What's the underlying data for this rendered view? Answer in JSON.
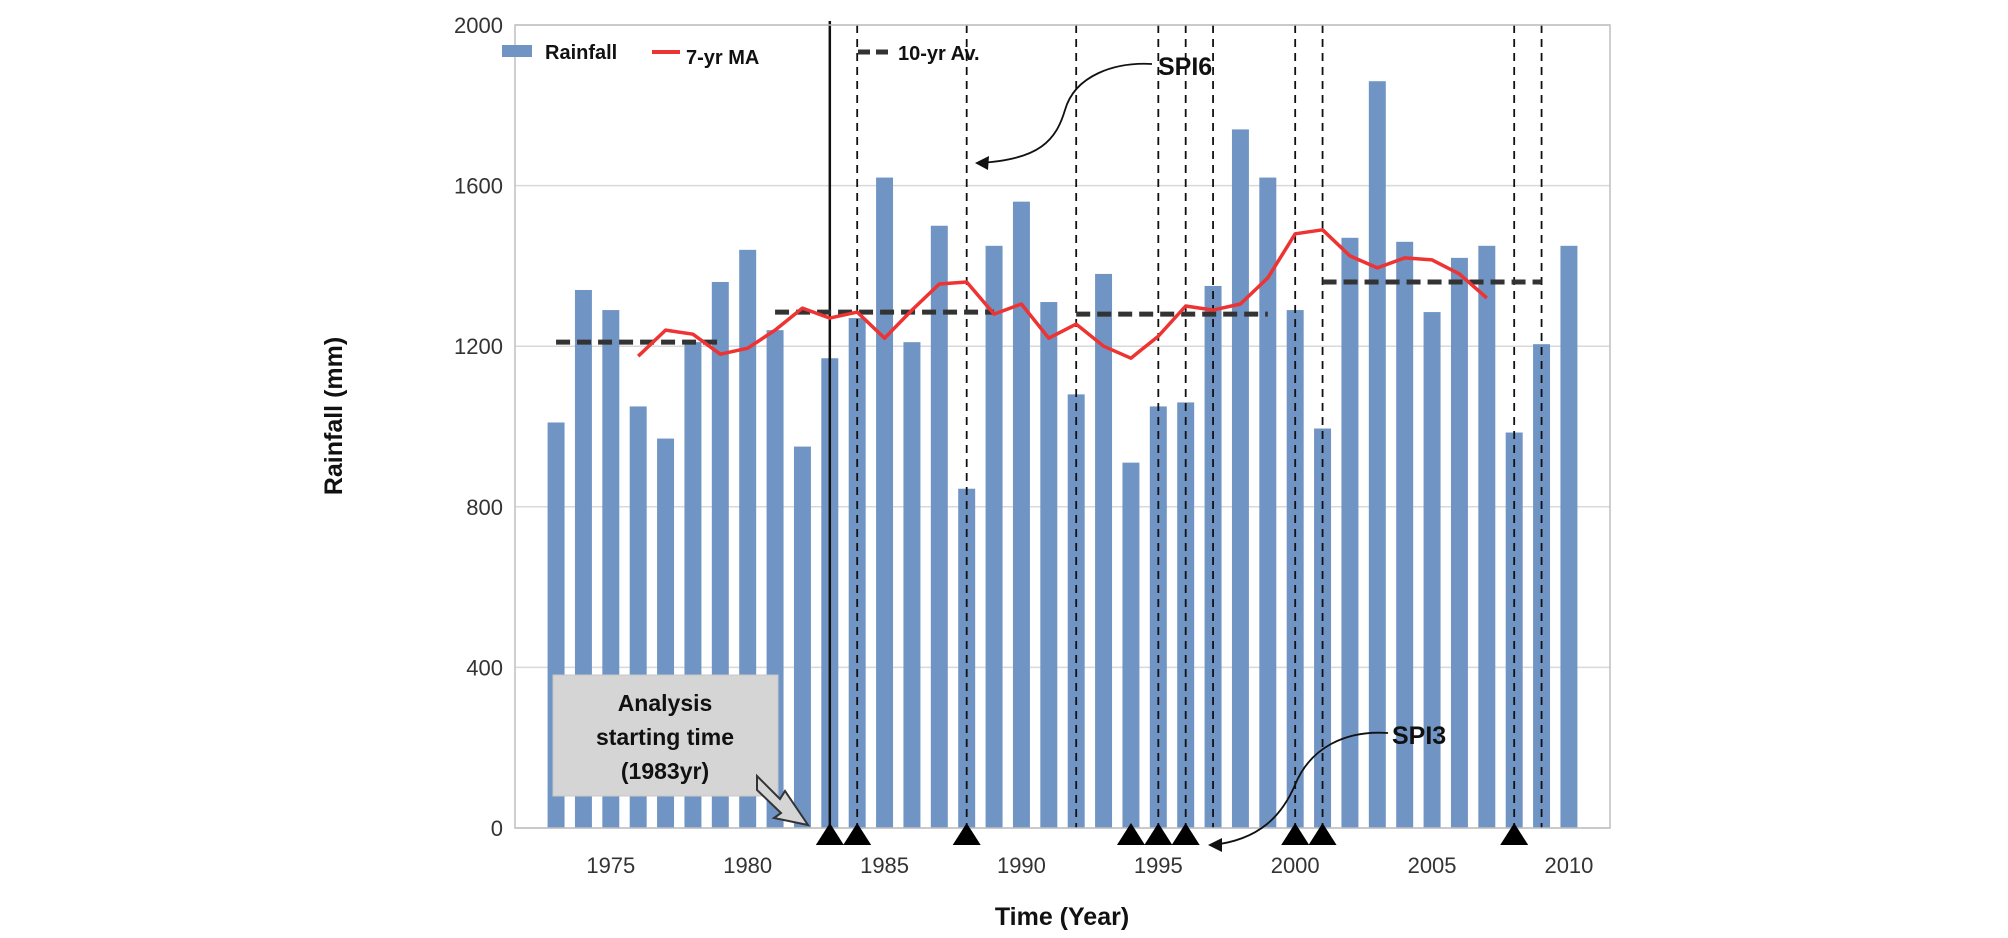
{
  "chart_data": {
    "type": "bar",
    "x_label": "Time (Year)",
    "y_label": "Rainfall (mm)",
    "xlim": [
      1971.5,
      2011.5
    ],
    "ylim": [
      0,
      2000
    ],
    "y_ticks": [
      0,
      400,
      800,
      1200,
      1600,
      2000
    ],
    "x_ticks": [
      1975,
      1980,
      1985,
      1990,
      1995,
      2000,
      2005,
      2010
    ],
    "grid": "horizontal",
    "legend": {
      "placement": "top-left",
      "items": [
        {
          "label": "Rainfall",
          "type": "bar",
          "color": "#7094c4"
        },
        {
          "label": "7-yr MA",
          "type": "line",
          "color": "#ee3333"
        },
        {
          "label": "10-yr Av.",
          "type": "dashed-line",
          "color": "#333333"
        }
      ]
    },
    "series": [
      {
        "name": "Rainfall",
        "type": "bar",
        "color": "#7094c4",
        "x": [
          1973,
          1974,
          1975,
          1976,
          1977,
          1978,
          1979,
          1980,
          1981,
          1982,
          1983,
          1984,
          1985,
          1986,
          1987,
          1988,
          1989,
          1990,
          1991,
          1992,
          1993,
          1994,
          1995,
          1996,
          1997,
          1998,
          1999,
          2000,
          2001,
          2002,
          2003,
          2004,
          2005,
          2006,
          2007,
          2008,
          2009,
          2010
        ],
        "values": [
          1010,
          1340,
          1290,
          1050,
          970,
          1210,
          1360,
          1440,
          1240,
          950,
          1170,
          1270,
          1620,
          1210,
          1500,
          845,
          1450,
          1560,
          1310,
          1080,
          1380,
          910,
          1050,
          1060,
          1350,
          1740,
          1620,
          1290,
          995,
          1470,
          1860,
          1460,
          1285,
          1420,
          1450,
          985,
          1205,
          1450
        ]
      },
      {
        "name": "7-yr MA",
        "type": "line",
        "color": "#ee3333",
        "x": [
          1976,
          1977,
          1978,
          1979,
          1980,
          1981,
          1982,
          1983,
          1984,
          1985,
          1986,
          1987,
          1988,
          1989,
          1990,
          1991,
          1992,
          1993,
          1994,
          1995,
          1996,
          1997,
          1998,
          1999,
          2000,
          2001,
          2002,
          2003,
          2004,
          2005,
          2006,
          2007
        ],
        "values": [
          1175,
          1240,
          1230,
          1180,
          1195,
          1240,
          1295,
          1270,
          1285,
          1220,
          1290,
          1355,
          1360,
          1280,
          1305,
          1220,
          1255,
          1200,
          1170,
          1225,
          1300,
          1290,
          1305,
          1370,
          1480,
          1490,
          1425,
          1395,
          1420,
          1415,
          1380,
          1320
        ]
      },
      {
        "name": "10-yr Av.",
        "type": "step",
        "color": "#333333",
        "segments": [
          {
            "x_start": 1973,
            "x_end": 1979,
            "value": 1210
          },
          {
            "x_start": 1981,
            "x_end": 1989,
            "value": 1285
          },
          {
            "x_start": 1992,
            "x_end": 1999,
            "value": 1280
          },
          {
            "x_start": 2001,
            "x_end": 2009,
            "value": 1360
          }
        ]
      }
    ],
    "vertical_lines": {
      "solid": [
        1983
      ],
      "dashed": [
        1984,
        1988,
        1992,
        1995,
        1996,
        1997,
        2000,
        2001,
        2008,
        2009
      ]
    },
    "markers": {
      "shape": "triangle-up",
      "x": [
        1983,
        1984,
        1988,
        1994,
        1995,
        1996,
        2000,
        2001,
        2008
      ]
    },
    "annotations": {
      "spi6": "SPI6",
      "spi3": "SPI3",
      "analysis_box": [
        "Analysis",
        "starting time",
        "(1983yr)"
      ]
    }
  }
}
